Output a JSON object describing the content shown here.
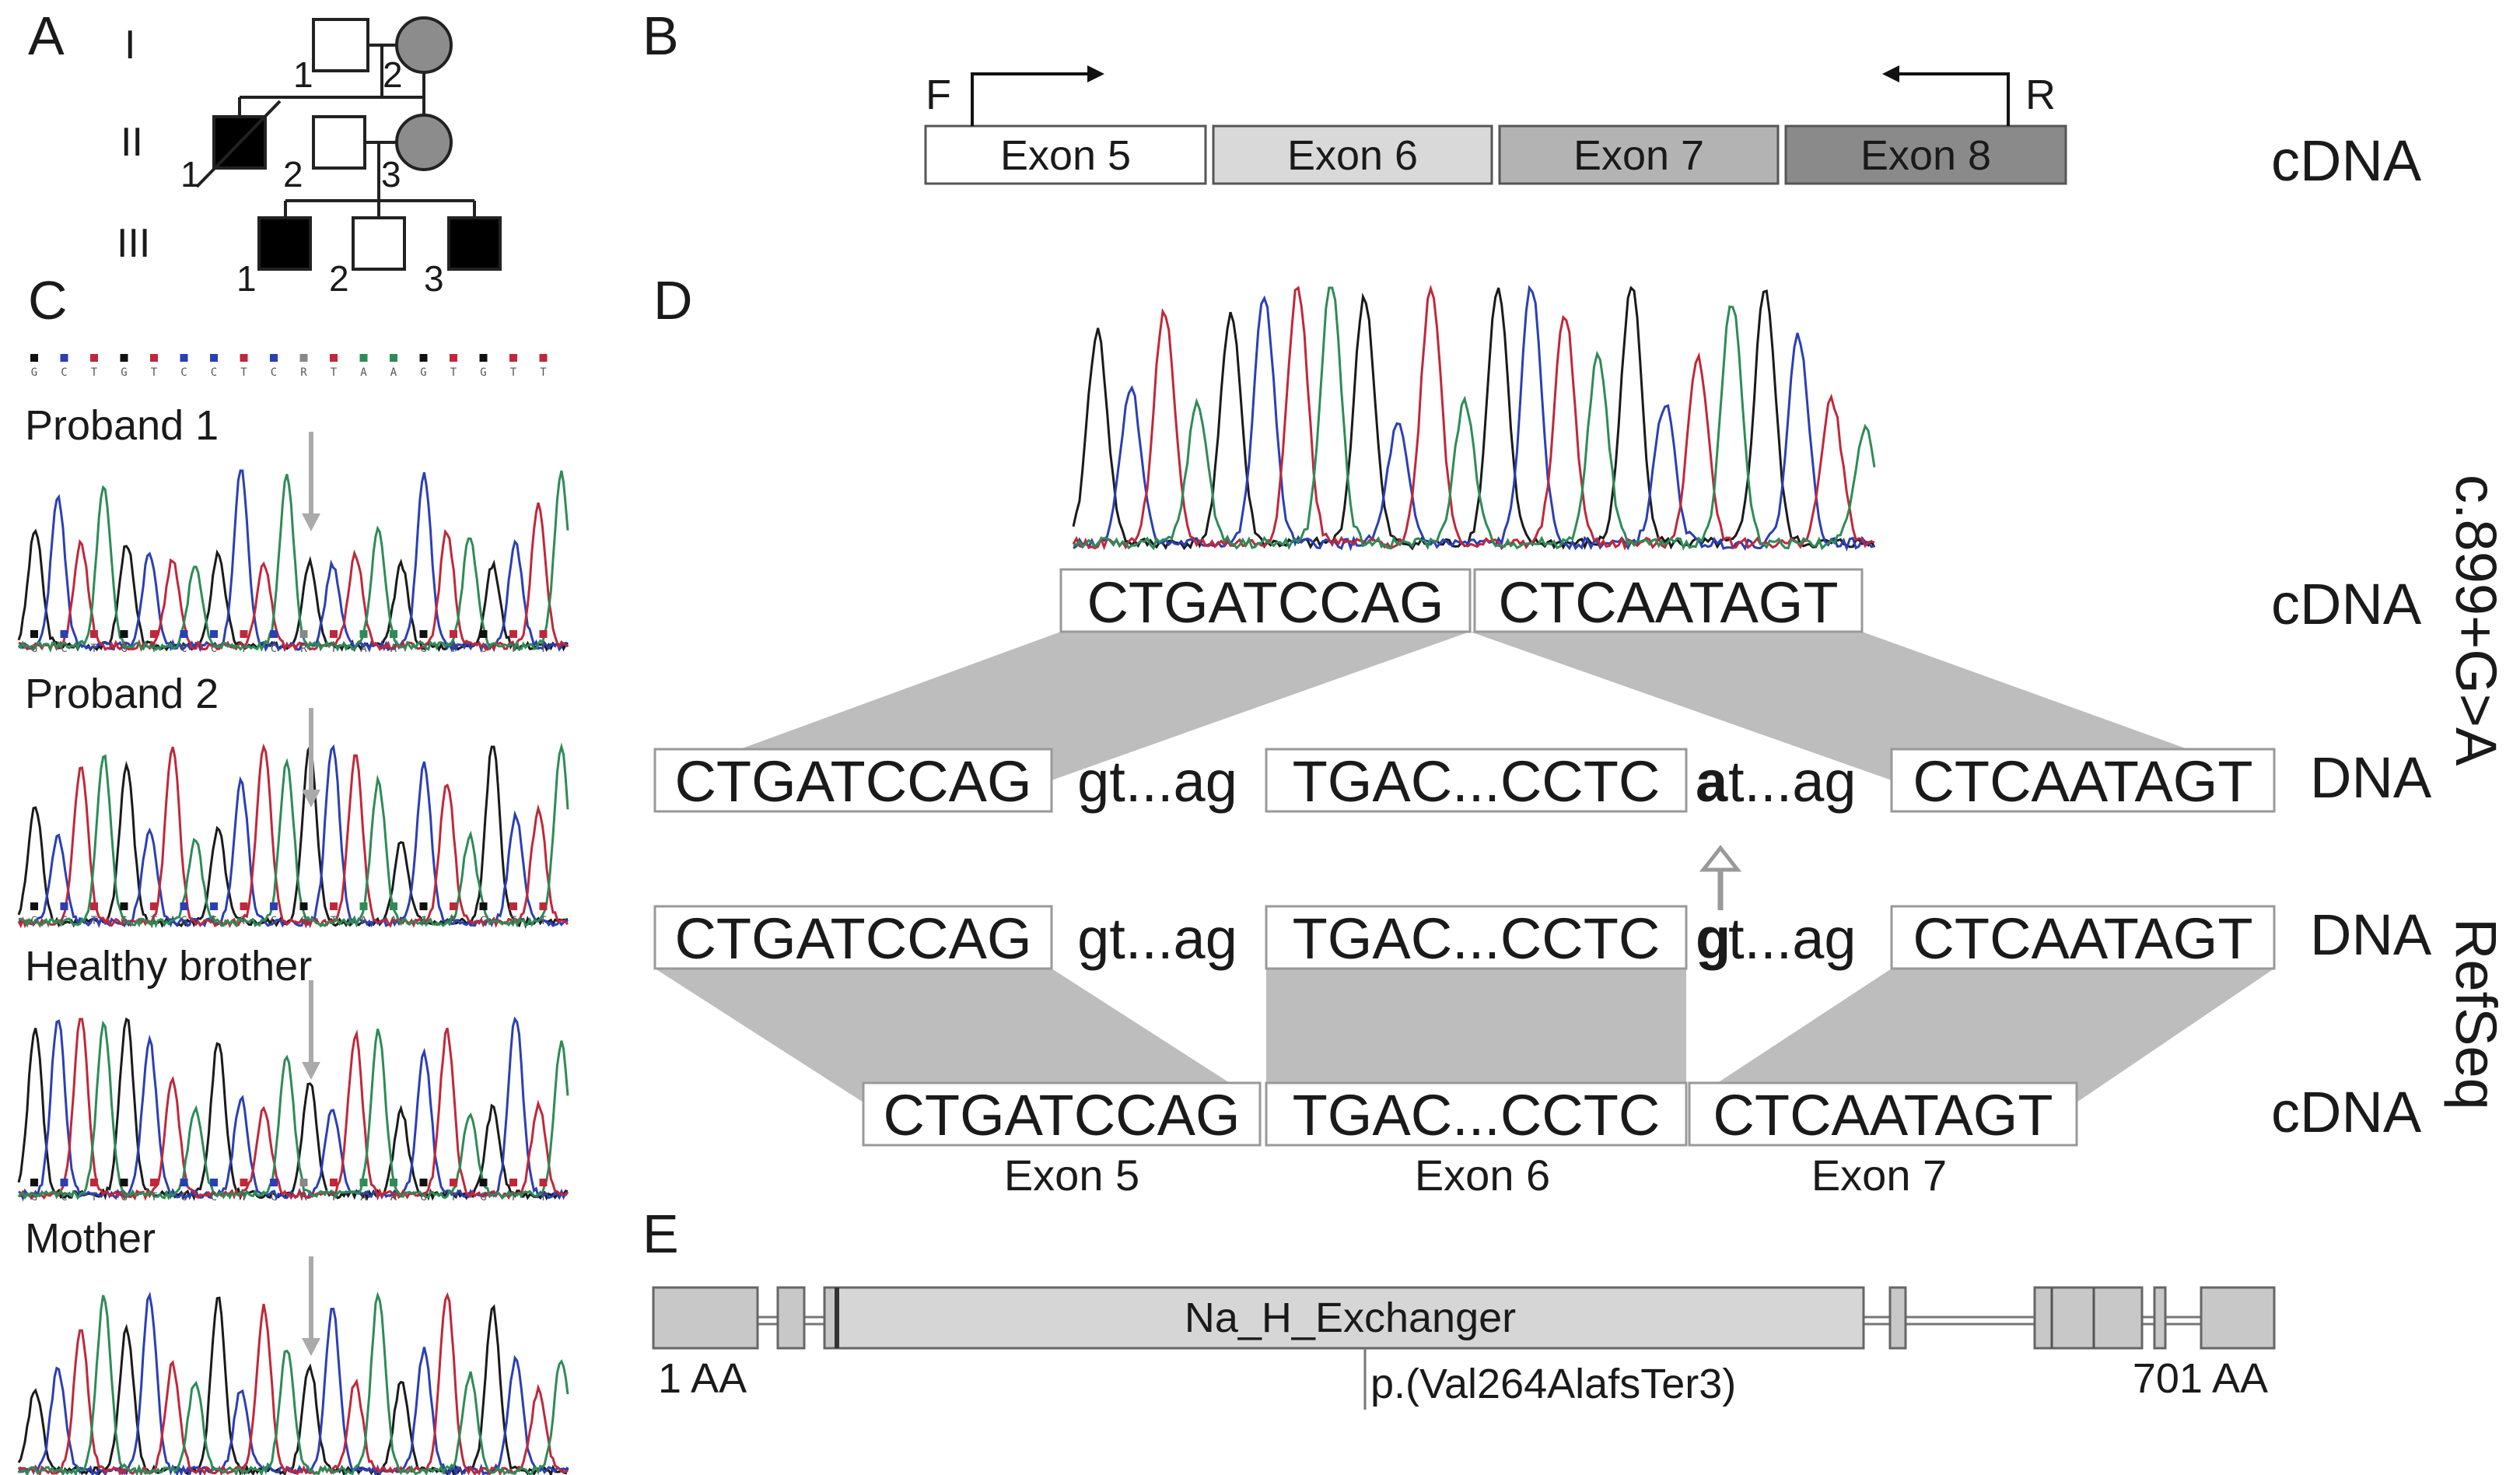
{
  "panels": {
    "A": "A",
    "B": "B",
    "C": "C",
    "D": "D",
    "E": "E"
  },
  "pedigree": {
    "generations": [
      "I",
      "II",
      "III"
    ],
    "individuals": {
      "I1": "1",
      "I2": "2",
      "II1": "1",
      "II2": "2",
      "II3": "3",
      "III1": "1",
      "III2": "2",
      "III3": "3"
    }
  },
  "panel_b": {
    "forward_primer": "F",
    "reverse_primer": "R",
    "exons": [
      "Exon 5",
      "Exon 6",
      "Exon 7",
      "Exon 8"
    ],
    "label": "cDNA"
  },
  "panel_c": {
    "base_sequence": [
      "G",
      "C",
      "T",
      "G",
      "T",
      "C",
      "C",
      "T",
      "C",
      "R",
      "T",
      "A",
      "A",
      "G",
      "T",
      "G",
      "T",
      "T"
    ],
    "healthy_sequence": [
      "G",
      "C",
      "T",
      "G",
      "T",
      "C",
      "C",
      "T",
      "C",
      "G",
      "T",
      "A",
      "A",
      "G",
      "T",
      "G",
      "T",
      "T"
    ],
    "tracks": [
      "Proband 1",
      "Proband 2",
      "Healthy brother",
      "Mother"
    ]
  },
  "panel_d": {
    "mutant_cdna": [
      "CTGATCCAG",
      "CTCAATAGT"
    ],
    "mutant_dna": {
      "exon5": "CTGATCCAG",
      "intron5": "gt...ag",
      "exon6": "TGAC...CCTC",
      "mut_base": "a",
      "intron6": "t...ag",
      "exon7": "CTCAATAGT"
    },
    "ref_dna": {
      "exon5": "CTGATCCAG",
      "intron5": "gt...ag",
      "exon6": "TGAC...CCTC",
      "ref_base": "g",
      "intron6": "t...ag",
      "exon7": "CTCAATAGT"
    },
    "ref_cdna": [
      "CTGATCCAG",
      "TGAC...CCTC",
      "CTCAATAGT"
    ],
    "exon_labels": [
      "Exon 5",
      "Exon 6",
      "Exon 7"
    ],
    "row_labels": {
      "cdna": "cDNA",
      "dna": "DNA"
    },
    "side_labels": {
      "mutant": "c.899+G>A",
      "reference": "RefSeq"
    }
  },
  "panel_e": {
    "domain": "Na_H_Exchanger",
    "start": "1 AA",
    "end": "701 AA",
    "variant": "p.(Val264AlafsTer3)"
  }
}
